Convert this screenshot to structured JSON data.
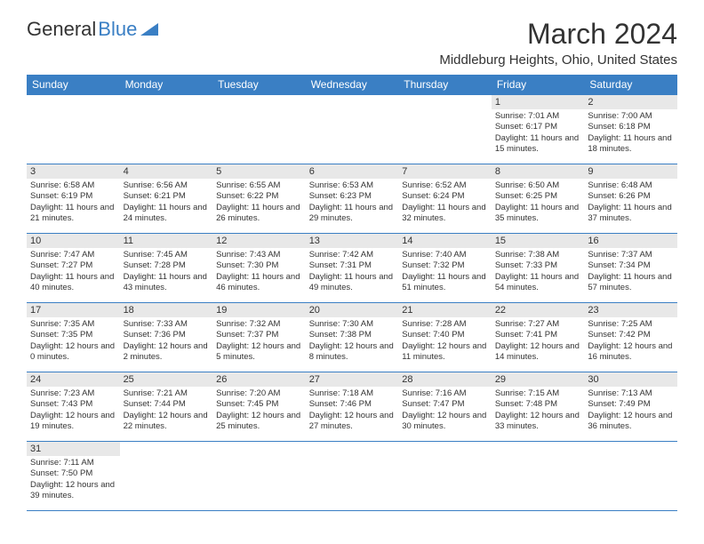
{
  "logo": {
    "part1": "General",
    "part2": "Blue"
  },
  "title": "March 2024",
  "location": "Middleburg Heights, Ohio, United States",
  "weekdays": [
    "Sunday",
    "Monday",
    "Tuesday",
    "Wednesday",
    "Thursday",
    "Friday",
    "Saturday"
  ],
  "colors": {
    "header_bg": "#3a7fc4",
    "header_fg": "#ffffff",
    "daynum_bg": "#e8e8e8",
    "border": "#3a7fc4",
    "text": "#333333",
    "accent": "#3a7fc4"
  },
  "typography": {
    "title_fontsize_pt": 24,
    "location_fontsize_pt": 11,
    "weekday_fontsize_pt": 9,
    "daynum_fontsize_pt": 8,
    "body_fontsize_pt": 7
  },
  "days": {
    "1": {
      "sunrise": "7:01 AM",
      "sunset": "6:17 PM",
      "daylight": "11 hours and 15 minutes."
    },
    "2": {
      "sunrise": "7:00 AM",
      "sunset": "6:18 PM",
      "daylight": "11 hours and 18 minutes."
    },
    "3": {
      "sunrise": "6:58 AM",
      "sunset": "6:19 PM",
      "daylight": "11 hours and 21 minutes."
    },
    "4": {
      "sunrise": "6:56 AM",
      "sunset": "6:21 PM",
      "daylight": "11 hours and 24 minutes."
    },
    "5": {
      "sunrise": "6:55 AM",
      "sunset": "6:22 PM",
      "daylight": "11 hours and 26 minutes."
    },
    "6": {
      "sunrise": "6:53 AM",
      "sunset": "6:23 PM",
      "daylight": "11 hours and 29 minutes."
    },
    "7": {
      "sunrise": "6:52 AM",
      "sunset": "6:24 PM",
      "daylight": "11 hours and 32 minutes."
    },
    "8": {
      "sunrise": "6:50 AM",
      "sunset": "6:25 PM",
      "daylight": "11 hours and 35 minutes."
    },
    "9": {
      "sunrise": "6:48 AM",
      "sunset": "6:26 PM",
      "daylight": "11 hours and 37 minutes."
    },
    "10": {
      "sunrise": "7:47 AM",
      "sunset": "7:27 PM",
      "daylight": "11 hours and 40 minutes."
    },
    "11": {
      "sunrise": "7:45 AM",
      "sunset": "7:28 PM",
      "daylight": "11 hours and 43 minutes."
    },
    "12": {
      "sunrise": "7:43 AM",
      "sunset": "7:30 PM",
      "daylight": "11 hours and 46 minutes."
    },
    "13": {
      "sunrise": "7:42 AM",
      "sunset": "7:31 PM",
      "daylight": "11 hours and 49 minutes."
    },
    "14": {
      "sunrise": "7:40 AM",
      "sunset": "7:32 PM",
      "daylight": "11 hours and 51 minutes."
    },
    "15": {
      "sunrise": "7:38 AM",
      "sunset": "7:33 PM",
      "daylight": "11 hours and 54 minutes."
    },
    "16": {
      "sunrise": "7:37 AM",
      "sunset": "7:34 PM",
      "daylight": "11 hours and 57 minutes."
    },
    "17": {
      "sunrise": "7:35 AM",
      "sunset": "7:35 PM",
      "daylight": "12 hours and 0 minutes."
    },
    "18": {
      "sunrise": "7:33 AM",
      "sunset": "7:36 PM",
      "daylight": "12 hours and 2 minutes."
    },
    "19": {
      "sunrise": "7:32 AM",
      "sunset": "7:37 PM",
      "daylight": "12 hours and 5 minutes."
    },
    "20": {
      "sunrise": "7:30 AM",
      "sunset": "7:38 PM",
      "daylight": "12 hours and 8 minutes."
    },
    "21": {
      "sunrise": "7:28 AM",
      "sunset": "7:40 PM",
      "daylight": "12 hours and 11 minutes."
    },
    "22": {
      "sunrise": "7:27 AM",
      "sunset": "7:41 PM",
      "daylight": "12 hours and 14 minutes."
    },
    "23": {
      "sunrise": "7:25 AM",
      "sunset": "7:42 PM",
      "daylight": "12 hours and 16 minutes."
    },
    "24": {
      "sunrise": "7:23 AM",
      "sunset": "7:43 PM",
      "daylight": "12 hours and 19 minutes."
    },
    "25": {
      "sunrise": "7:21 AM",
      "sunset": "7:44 PM",
      "daylight": "12 hours and 22 minutes."
    },
    "26": {
      "sunrise": "7:20 AM",
      "sunset": "7:45 PM",
      "daylight": "12 hours and 25 minutes."
    },
    "27": {
      "sunrise": "7:18 AM",
      "sunset": "7:46 PM",
      "daylight": "12 hours and 27 minutes."
    },
    "28": {
      "sunrise": "7:16 AM",
      "sunset": "7:47 PM",
      "daylight": "12 hours and 30 minutes."
    },
    "29": {
      "sunrise": "7:15 AM",
      "sunset": "7:48 PM",
      "daylight": "12 hours and 33 minutes."
    },
    "30": {
      "sunrise": "7:13 AM",
      "sunset": "7:49 PM",
      "daylight": "12 hours and 36 minutes."
    },
    "31": {
      "sunrise": "7:11 AM",
      "sunset": "7:50 PM",
      "daylight": "12 hours and 39 minutes."
    }
  },
  "layout": {
    "first_weekday_index": 5,
    "rows": 6,
    "cols": 7
  },
  "labels": {
    "sunrise": "Sunrise:",
    "sunset": "Sunset:",
    "daylight": "Daylight:"
  }
}
